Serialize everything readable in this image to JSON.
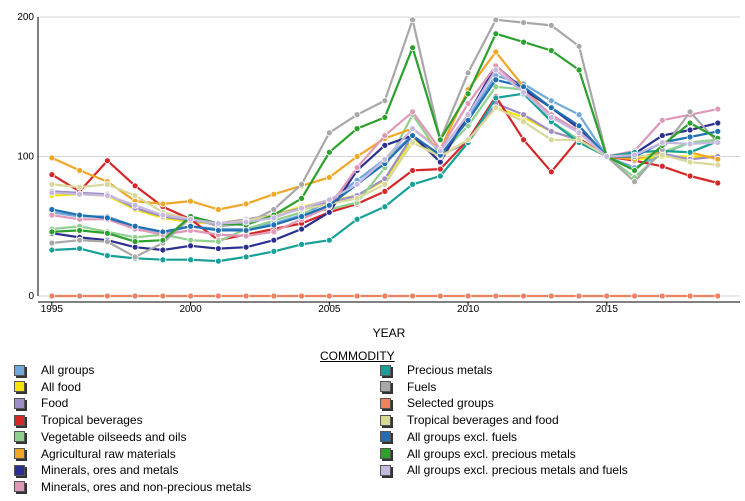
{
  "chart_data": {
    "type": "line",
    "title": "",
    "xlabel": "YEAR",
    "ylabel": "",
    "legend_title": "COMMODITY",
    "xlim": [
      1994.5,
      2019.8
    ],
    "ylim": [
      0,
      200
    ],
    "x_ticks": [
      1995,
      2000,
      2005,
      2010,
      2015
    ],
    "y_ticks": [
      0,
      100,
      200
    ],
    "grid": "horizontal",
    "legend_position": "bottom",
    "x": [
      1995,
      1996,
      1997,
      1998,
      1999,
      2000,
      2001,
      2002,
      2003,
      2004,
      2005,
      2006,
      2007,
      2008,
      2009,
      2010,
      2011,
      2012,
      2013,
      2014,
      2015,
      2016,
      2017,
      2018,
      2019
    ],
    "series": [
      {
        "name": "All groups",
        "color": "#6fa8dc",
        "values": [
          60,
          57,
          57,
          50,
          45,
          50,
          48,
          48,
          52,
          58,
          68,
          83,
          98,
          115,
          100,
          128,
          158,
          152,
          140,
          130,
          100,
          92,
          102,
          110,
          112
        ]
      },
      {
        "name": "All food",
        "color": "#f4e400",
        "values": [
          72,
          73,
          72,
          62,
          56,
          53,
          52,
          55,
          58,
          64,
          68,
          72,
          83,
          113,
          100,
          112,
          135,
          128,
          118,
          112,
          100,
          98,
          100,
          100,
          100
        ]
      },
      {
        "name": "Food",
        "color": "#9e8ec7",
        "values": [
          75,
          74,
          73,
          63,
          57,
          54,
          52,
          55,
          58,
          63,
          67,
          72,
          84,
          115,
          101,
          110,
          138,
          130,
          118,
          112,
          100,
          99,
          102,
          98,
          100
        ]
      },
      {
        "name": "Tropical beverages",
        "color": "#d62728",
        "values": [
          87,
          75,
          97,
          79,
          64,
          55,
          40,
          44,
          48,
          52,
          60,
          66,
          75,
          90,
          91,
          112,
          143,
          112,
          89,
          113,
          100,
          97,
          93,
          86,
          81
        ]
      },
      {
        "name": "Vegetable oilseeds and oils",
        "color": "#8fd08f",
        "values": [
          48,
          50,
          46,
          42,
          44,
          40,
          39,
          48,
          54,
          60,
          62,
          67,
          92,
          130,
          101,
          122,
          150,
          148,
          125,
          112,
          100,
          85,
          103,
          110,
          112
        ]
      },
      {
        "name": "Agricultural raw materials",
        "color": "#f2a626",
        "values": [
          99,
          90,
          82,
          68,
          66,
          68,
          62,
          66,
          73,
          79,
          85,
          100,
          113,
          120,
          105,
          148,
          175,
          150,
          128,
          118,
          100,
          98,
          104,
          103,
          98
        ]
      },
      {
        "name": "Minerals, ores and metals",
        "color": "#2b2f8f",
        "values": [
          45,
          42,
          40,
          35,
          33,
          36,
          34,
          35,
          40,
          48,
          60,
          90,
          108,
          115,
          96,
          130,
          165,
          148,
          135,
          120,
          100,
          102,
          115,
          119,
          124
        ]
      },
      {
        "name": "Minerals, ores and non-precious metals",
        "color": "#e098b8",
        "values": [
          58,
          55,
          55,
          48,
          44,
          47,
          44,
          43,
          46,
          55,
          64,
          92,
          115,
          132,
          105,
          138,
          165,
          147,
          130,
          118,
          100,
          104,
          126,
          130,
          134
        ]
      },
      {
        "name": "Precious metals",
        "color": "#17a098",
        "values": [
          33,
          34,
          29,
          27,
          26,
          26,
          25,
          28,
          32,
          37,
          40,
          55,
          64,
          80,
          86,
          110,
          142,
          145,
          125,
          110,
          100,
          103,
          104,
          103,
          111
        ]
      },
      {
        "name": "Fuels",
        "color": "#a8a8a8",
        "values": [
          38,
          40,
          39,
          28,
          38,
          56,
          50,
          52,
          62,
          80,
          117,
          130,
          140,
          198,
          112,
          160,
          198,
          196,
          194,
          179,
          100,
          82,
          105,
          132,
          110
        ]
      },
      {
        "name": "Selected groups",
        "color": "#f08060",
        "values": [
          0,
          0,
          0,
          0,
          0,
          0,
          0,
          0,
          0,
          0,
          0,
          0,
          0,
          0,
          0,
          0,
          0,
          0,
          0,
          0,
          0,
          0,
          0,
          0,
          0
        ]
      },
      {
        "name": "Tropical beverages and food",
        "color": "#d8d89a",
        "values": [
          80,
          78,
          80,
          72,
          60,
          55,
          52,
          54,
          58,
          62,
          66,
          70,
          80,
          110,
          100,
          112,
          135,
          125,
          112,
          112,
          100,
          100,
          101,
          96,
          94
        ]
      },
      {
        "name": "All groups excl. fuels",
        "color": "#1f6fb4",
        "values": [
          62,
          58,
          56,
          50,
          46,
          50,
          47,
          47,
          51,
          57,
          65,
          80,
          95,
          115,
          101,
          126,
          155,
          150,
          135,
          122,
          100,
          100,
          110,
          114,
          118
        ]
      },
      {
        "name": "All groups excl. precious metals",
        "color": "#2ca02c",
        "values": [
          46,
          47,
          45,
          39,
          40,
          57,
          52,
          51,
          58,
          70,
          103,
          120,
          128,
          178,
          112,
          145,
          188,
          182,
          176,
          162,
          100,
          90,
          108,
          124,
          113
        ]
      },
      {
        "name": "All groups excl. precious metals and fuels",
        "color": "#c7b8e0",
        "values": [
          74,
          73,
          72,
          65,
          58,
          55,
          52,
          53,
          56,
          63,
          69,
          80,
          98,
          120,
          104,
          130,
          162,
          146,
          128,
          117,
          100,
          101,
          110,
          109,
          110
        ]
      }
    ]
  }
}
